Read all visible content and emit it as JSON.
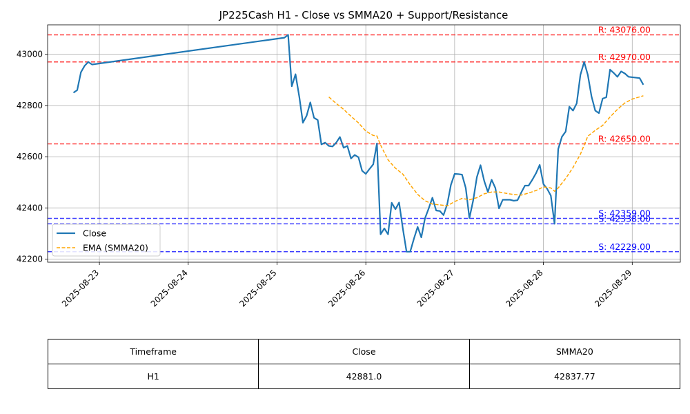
{
  "chart_data": {
    "type": "line",
    "title": "JP225Cash H1 - Close vs SMMA20 + Support/Resistance",
    "xlabel": "",
    "ylabel": "",
    "x_ticks": [
      "2025-08-23",
      "2025-08-24",
      "2025-08-25",
      "2025-08-26",
      "2025-08-27",
      "2025-08-28",
      "2025-08-29"
    ],
    "y_ticks": [
      "42200",
      "42400",
      "42600",
      "42800",
      "43000"
    ],
    "xlim": [
      "2025-08-22 10:00",
      "2025-08-29 13:00"
    ],
    "ylim": [
      42188,
      43115
    ],
    "grid": true,
    "legend_position": "lower-left",
    "series": [
      {
        "name": "Close",
        "color": "#1f77b4",
        "style": "solid",
        "points": [
          [
            "2025-08-22 17:00",
            42850
          ],
          [
            "2025-08-22 18:00",
            42860
          ],
          [
            "2025-08-22 19:00",
            42930
          ],
          [
            "2025-08-22 20:00",
            42955
          ],
          [
            "2025-08-22 21:00",
            42970
          ],
          [
            "2025-08-22 22:00",
            42960
          ],
          [
            "2025-08-25 02:00",
            43065
          ],
          [
            "2025-08-25 03:00",
            43076
          ],
          [
            "2025-08-25 04:00",
            42875
          ],
          [
            "2025-08-25 05:00",
            42922
          ],
          [
            "2025-08-25 06:00",
            42835
          ],
          [
            "2025-08-25 07:00",
            42733
          ],
          [
            "2025-08-25 08:00",
            42760
          ],
          [
            "2025-08-25 09:00",
            42812
          ],
          [
            "2025-08-25 10:00",
            42752
          ],
          [
            "2025-08-25 11:00",
            42743
          ],
          [
            "2025-08-25 12:00",
            42648
          ],
          [
            "2025-08-25 13:00",
            42655
          ],
          [
            "2025-08-25 14:00",
            42642
          ],
          [
            "2025-08-25 15:00",
            42640
          ],
          [
            "2025-08-25 16:00",
            42655
          ],
          [
            "2025-08-25 17:00",
            42677
          ],
          [
            "2025-08-25 18:00",
            42635
          ],
          [
            "2025-08-25 19:00",
            42642
          ],
          [
            "2025-08-25 20:00",
            42593
          ],
          [
            "2025-08-25 21:00",
            42607
          ],
          [
            "2025-08-25 22:00",
            42598
          ],
          [
            "2025-08-25 23:00",
            42545
          ],
          [
            "2025-08-26 00:00",
            42533
          ],
          [
            "2025-08-26 01:00",
            42552
          ],
          [
            "2025-08-26 02:00",
            42570
          ],
          [
            "2025-08-26 03:00",
            42652
          ],
          [
            "2025-08-26 04:00",
            42297
          ],
          [
            "2025-08-26 05:00",
            42320
          ],
          [
            "2025-08-26 06:00",
            42297
          ],
          [
            "2025-08-26 07:00",
            42420
          ],
          [
            "2025-08-26 08:00",
            42395
          ],
          [
            "2025-08-26 09:00",
            42421
          ],
          [
            "2025-08-26 10:00",
            42320
          ],
          [
            "2025-08-26 11:00",
            42229
          ],
          [
            "2025-08-26 12:00",
            42229
          ],
          [
            "2025-08-26 13:00",
            42280
          ],
          [
            "2025-08-26 14:00",
            42326
          ],
          [
            "2025-08-26 15:00",
            42285
          ],
          [
            "2025-08-26 16:00",
            42360
          ],
          [
            "2025-08-26 17:00",
            42398
          ],
          [
            "2025-08-26 18:00",
            42440
          ],
          [
            "2025-08-26 19:00",
            42390
          ],
          [
            "2025-08-26 20:00",
            42388
          ],
          [
            "2025-08-26 21:00",
            42372
          ],
          [
            "2025-08-26 22:00",
            42415
          ],
          [
            "2025-08-26 23:00",
            42490
          ],
          [
            "2025-08-27 00:00",
            42533
          ],
          [
            "2025-08-27 01:00",
            42532
          ],
          [
            "2025-08-27 02:00",
            42530
          ],
          [
            "2025-08-27 03:00",
            42478
          ],
          [
            "2025-08-27 04:00",
            42360
          ],
          [
            "2025-08-27 05:00",
            42428
          ],
          [
            "2025-08-27 06:00",
            42520
          ],
          [
            "2025-08-27 07:00",
            42567
          ],
          [
            "2025-08-27 08:00",
            42505
          ],
          [
            "2025-08-27 09:00",
            42462
          ],
          [
            "2025-08-27 10:00",
            42510
          ],
          [
            "2025-08-27 11:00",
            42478
          ],
          [
            "2025-08-27 12:00",
            42398
          ],
          [
            "2025-08-27 13:00",
            42432
          ],
          [
            "2025-08-27 14:00",
            42432
          ],
          [
            "2025-08-27 15:00",
            42432
          ],
          [
            "2025-08-27 16:00",
            42428
          ],
          [
            "2025-08-27 17:00",
            42430
          ],
          [
            "2025-08-27 18:00",
            42460
          ],
          [
            "2025-08-27 19:00",
            42487
          ],
          [
            "2025-08-27 20:00",
            42487
          ],
          [
            "2025-08-27 21:00",
            42510
          ],
          [
            "2025-08-27 22:00",
            42536
          ],
          [
            "2025-08-27 23:00",
            42568
          ],
          [
            "2025-08-28 00:00",
            42493
          ],
          [
            "2025-08-28 01:00",
            42475
          ],
          [
            "2025-08-28 02:00",
            42448
          ],
          [
            "2025-08-28 03:00",
            42338
          ],
          [
            "2025-08-28 04:00",
            42630
          ],
          [
            "2025-08-28 05:00",
            42678
          ],
          [
            "2025-08-28 06:00",
            42698
          ],
          [
            "2025-08-28 07:00",
            42795
          ],
          [
            "2025-08-28 08:00",
            42780
          ],
          [
            "2025-08-28 09:00",
            42808
          ],
          [
            "2025-08-28 10:00",
            42920
          ],
          [
            "2025-08-28 11:00",
            42970
          ],
          [
            "2025-08-28 12:00",
            42920
          ],
          [
            "2025-08-28 13:00",
            42835
          ],
          [
            "2025-08-28 14:00",
            42780
          ],
          [
            "2025-08-28 15:00",
            42770
          ],
          [
            "2025-08-28 16:00",
            42827
          ],
          [
            "2025-08-28 17:00",
            42832
          ],
          [
            "2025-08-28 18:00",
            42940
          ],
          [
            "2025-08-28 19:00",
            42927
          ],
          [
            "2025-08-28 20:00",
            42912
          ],
          [
            "2025-08-28 21:00",
            42933
          ],
          [
            "2025-08-28 22:00",
            42925
          ],
          [
            "2025-08-28 23:00",
            42912
          ],
          [
            "2025-08-29 02:00",
            42907
          ],
          [
            "2025-08-29 03:00",
            42881
          ]
        ]
      },
      {
        "name": "EMA (SMMA20)",
        "color": "#ffa500",
        "style": "dashed",
        "points": [
          [
            "2025-08-25 14:00",
            42833
          ],
          [
            "2025-08-25 16:00",
            42808
          ],
          [
            "2025-08-25 18:00",
            42785
          ],
          [
            "2025-08-25 20:00",
            42758
          ],
          [
            "2025-08-25 22:00",
            42732
          ],
          [
            "2025-08-26 00:00",
            42700
          ],
          [
            "2025-08-26 02:00",
            42683
          ],
          [
            "2025-08-26 03:00",
            42681
          ],
          [
            "2025-08-26 04:00",
            42645
          ],
          [
            "2025-08-26 06:00",
            42588
          ],
          [
            "2025-08-26 08:00",
            42555
          ],
          [
            "2025-08-26 10:00",
            42532
          ],
          [
            "2025-08-26 12:00",
            42490
          ],
          [
            "2025-08-26 14:00",
            42453
          ],
          [
            "2025-08-26 16:00",
            42428
          ],
          [
            "2025-08-26 18:00",
            42415
          ],
          [
            "2025-08-26 20:00",
            42412
          ],
          [
            "2025-08-26 22:00",
            42408
          ],
          [
            "2025-08-27 00:00",
            42425
          ],
          [
            "2025-08-27 02:00",
            42437
          ],
          [
            "2025-08-27 04:00",
            42432
          ],
          [
            "2025-08-27 06:00",
            42440
          ],
          [
            "2025-08-27 08:00",
            42455
          ],
          [
            "2025-08-27 10:00",
            42462
          ],
          [
            "2025-08-27 12:00",
            42462
          ],
          [
            "2025-08-27 14:00",
            42457
          ],
          [
            "2025-08-27 16:00",
            42452
          ],
          [
            "2025-08-27 18:00",
            42450
          ],
          [
            "2025-08-27 20:00",
            42458
          ],
          [
            "2025-08-27 22:00",
            42468
          ],
          [
            "2025-08-28 00:00",
            42482
          ],
          [
            "2025-08-28 02:00",
            42478
          ],
          [
            "2025-08-28 03:00",
            42465
          ],
          [
            "2025-08-28 04:00",
            42478
          ],
          [
            "2025-08-28 06:00",
            42515
          ],
          [
            "2025-08-28 08:00",
            42558
          ],
          [
            "2025-08-28 10:00",
            42610
          ],
          [
            "2025-08-28 12:00",
            42680
          ],
          [
            "2025-08-28 14:00",
            42703
          ],
          [
            "2025-08-28 16:00",
            42722
          ],
          [
            "2025-08-28 18:00",
            42755
          ],
          [
            "2025-08-28 20:00",
            42785
          ],
          [
            "2025-08-28 22:00",
            42810
          ],
          [
            "2025-08-29 00:00",
            42825
          ],
          [
            "2025-08-29 03:00",
            42838
          ]
        ]
      }
    ],
    "resistance_levels": [
      {
        "value": 43076,
        "label": "R: 43076.00",
        "color": "#ff0000"
      },
      {
        "value": 42970,
        "label": "R: 42970.00",
        "color": "#ff0000"
      },
      {
        "value": 42650,
        "label": "R: 42650.00",
        "color": "#ff0000"
      }
    ],
    "support_levels": [
      {
        "value": 42359,
        "label": "S: 42359.00",
        "color": "#0000ff"
      },
      {
        "value": 42338,
        "label": "S: 42338.00",
        "color": "#0000ff"
      },
      {
        "value": 42229,
        "label": "S: 42229.00",
        "color": "#0000ff"
      }
    ]
  },
  "table": {
    "headers": [
      "Timeframe",
      "Close",
      "SMMA20"
    ],
    "rows": [
      [
        "H1",
        "42881.0",
        "42837.77"
      ]
    ]
  }
}
